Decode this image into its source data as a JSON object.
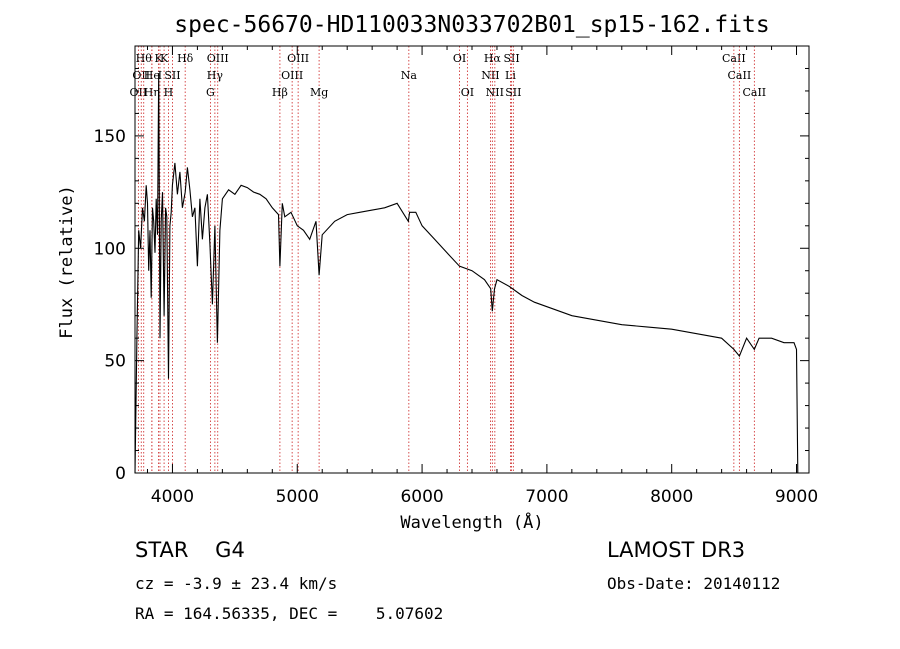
{
  "chart_data": {
    "type": "line",
    "title": "spec-56670-HD110033N033702B01_sp15-162.fits",
    "xlabel": "Wavelength (Å)",
    "ylabel": "Flux (relative)",
    "xlim": [
      3700,
      9100
    ],
    "ylim": [
      0,
      190
    ],
    "xticks": [
      4000,
      5000,
      6000,
      7000,
      8000,
      9000
    ],
    "yticks": [
      0,
      50,
      100,
      150
    ],
    "series": [
      {
        "name": "flux",
        "x": [
          3700,
          3715,
          3730,
          3745,
          3760,
          3775,
          3790,
          3800,
          3810,
          3820,
          3830,
          3840,
          3850,
          3860,
          3870,
          3880,
          3890,
          3900,
          3910,
          3920,
          3933,
          3945,
          3955,
          3968,
          3980,
          3990,
          4000,
          4020,
          4040,
          4060,
          4080,
          4102,
          4120,
          4140,
          4160,
          4180,
          4200,
          4220,
          4240,
          4260,
          4280,
          4300,
          4320,
          4340,
          4360,
          4380,
          4400,
          4450,
          4500,
          4550,
          4600,
          4650,
          4700,
          4750,
          4800,
          4850,
          4861,
          4880,
          4900,
          4950,
          5000,
          5050,
          5100,
          5150,
          5175,
          5200,
          5300,
          5400,
          5500,
          5600,
          5700,
          5800,
          5890,
          5900,
          5950,
          6000,
          6100,
          6200,
          6300,
          6400,
          6500,
          6550,
          6563,
          6580,
          6600,
          6700,
          6800,
          6900,
          7000,
          7200,
          7400,
          7600,
          7800,
          8000,
          8200,
          8400,
          8498,
          8542,
          8600,
          8662,
          8700,
          8800,
          8900,
          8980,
          9000,
          9010
        ],
        "y": [
          0,
          60,
          108,
          100,
          118,
          112,
          128,
          120,
          90,
          108,
          78,
          118,
          112,
          98,
          122,
          106,
          178,
          60,
          112,
          125,
          70,
          118,
          114,
          42,
          110,
          116,
          128,
          138,
          124,
          134,
          118,
          125,
          136,
          126,
          114,
          118,
          92,
          122,
          104,
          118,
          124,
          102,
          75,
          110,
          58,
          108,
          122,
          126,
          124,
          128,
          127,
          125,
          124,
          122,
          118,
          115,
          92,
          120,
          114,
          116,
          110,
          108,
          104,
          112,
          88,
          106,
          112,
          115,
          116,
          117,
          118,
          120,
          112,
          116,
          116,
          110,
          104,
          98,
          92,
          90,
          86,
          82,
          72,
          82,
          86,
          83,
          79,
          76,
          74,
          70,
          68,
          66,
          65,
          64,
          62,
          60,
          55,
          52,
          60,
          55,
          60,
          60,
          58,
          58,
          55,
          0
        ]
      }
    ],
    "lines": [
      {
        "w": 3727,
        "row": 2,
        "label": "OII"
      },
      {
        "w": 3750,
        "row": 1,
        "label": "OII"
      },
      {
        "w": 3770,
        "row": 0,
        "label": "Hθ"
      },
      {
        "w": 3835,
        "row": 2,
        "label": "Hη"
      },
      {
        "w": 3835,
        "row": 1,
        "label": "He"
      },
      {
        "w": 3889,
        "row": 0,
        "label": "K"
      },
      {
        "w": 3900,
        "row": 1,
        "label": "I"
      },
      {
        "w": 3933,
        "row": 0,
        "label": "K"
      },
      {
        "w": 3968,
        "row": 2,
        "label": "H"
      },
      {
        "w": 4000,
        "row": 1,
        "label": "SII"
      },
      {
        "w": 4102,
        "row": 0,
        "label": "Hδ"
      },
      {
        "w": 4304,
        "row": 2,
        "label": "G"
      },
      {
        "w": 4340,
        "row": 1,
        "label": "Hγ"
      },
      {
        "w": 4363,
        "row": 0,
        "label": "OIII"
      },
      {
        "w": 4861,
        "row": 2,
        "label": "Hβ"
      },
      {
        "w": 4959,
        "row": 1,
        "label": "OIII"
      },
      {
        "w": 5007,
        "row": 0,
        "label": "OIII"
      },
      {
        "w": 5175,
        "row": 2,
        "label": "Mg"
      },
      {
        "w": 5894,
        "row": 1,
        "label": "Na"
      },
      {
        "w": 6300,
        "row": 0,
        "label": "OI"
      },
      {
        "w": 6363,
        "row": 2,
        "label": "OI"
      },
      {
        "w": 6548,
        "row": 1,
        "label": "NII"
      },
      {
        "w": 6563,
        "row": 0,
        "label": "Hα"
      },
      {
        "w": 6583,
        "row": 2,
        "label": "NII"
      },
      {
        "w": 6708,
        "row": 1,
        "label": "Li"
      },
      {
        "w": 6717,
        "row": 0,
        "label": "SII"
      },
      {
        "w": 6731,
        "row": 2,
        "label": "SII"
      },
      {
        "w": 8498,
        "row": 0,
        "label": "CaII"
      },
      {
        "w": 8542,
        "row": 1,
        "label": "CaII"
      },
      {
        "w": 8662,
        "row": 2,
        "label": "CaII"
      }
    ]
  },
  "footer": {
    "class_label": "STAR    G4",
    "survey": "LAMOST DR3",
    "cz": "cz = -3.9 ± 23.4 km/s",
    "obs_date": "Obs-Date: 20140112",
    "coords": "RA = 164.56335, DEC =    5.07602"
  },
  "colors": {
    "line": "#000000",
    "marker": "#cc2222",
    "background": "#ffffff"
  }
}
